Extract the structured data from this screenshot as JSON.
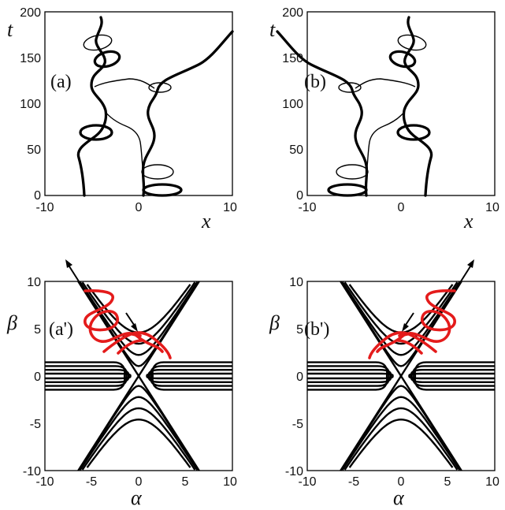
{
  "chart_data": [
    {
      "type": "line",
      "panel_label": "(a)",
      "xlabel": "x",
      "ylabel": "t",
      "xlim": [
        -10,
        10
      ],
      "ylim": [
        0,
        200
      ],
      "x_ticks": [
        -10,
        0,
        10
      ],
      "y_ticks": [
        0,
        50,
        100,
        150,
        200
      ],
      "grid": false,
      "series": [
        {
          "style": "thin",
          "x": [
            -5.7,
            -5.9,
            -6.4,
            -7.0,
            -7.5,
            -7.6,
            -7.3,
            -6.7,
            -6.2,
            -5.9
          ],
          "y": [
            0.0,
            30.0,
            55.0,
            80.0,
            110.0,
            130.0,
            150.0,
            172.0,
            190.0,
            200.0
          ]
        },
        {
          "style": "thick",
          "x": [
            0.4,
            0.6,
            0.9,
            1.2,
            1.0,
            0.6,
            0.3,
            0.1,
            0.4,
            0.8
          ],
          "y": [
            0.0,
            20.0,
            45.0,
            75.0,
            100.0,
            120.0,
            140.0,
            160.0,
            180.0,
            200.0
          ]
        },
        {
          "style": "thick",
          "x": [
            -1.5,
            -0.9,
            0.0,
            1.5,
            3.5,
            6.2,
            8.3,
            10.0
          ],
          "y": [
            103.0,
            108.0,
            113.0,
            117.0,
            125.0,
            142.0,
            160.0,
            178.0
          ]
        }
      ]
    },
    {
      "type": "line",
      "panel_label": "(b)",
      "xlabel": "x",
      "ylabel": "t",
      "xlim": [
        -10,
        10
      ],
      "ylim": [
        0,
        200
      ],
      "x_ticks": [
        -10,
        0,
        10
      ],
      "y_ticks": [
        0,
        50,
        100,
        150,
        200
      ],
      "grid": false,
      "series": [
        {
          "style": "thin",
          "x": [
            5.7,
            5.9,
            6.4,
            7.0,
            7.5,
            7.6,
            7.3,
            6.7,
            6.2,
            5.9
          ],
          "y": [
            0.0,
            30.0,
            55.0,
            80.0,
            110.0,
            130.0,
            150.0,
            172.0,
            190.0,
            200.0
          ]
        },
        {
          "style": "thick",
          "x": [
            -0.4,
            -0.6,
            -0.9,
            -1.2,
            -1.0,
            -0.6,
            -0.3,
            -0.1,
            -0.4,
            -0.8
          ],
          "y": [
            0.0,
            20.0,
            45.0,
            75.0,
            100.0,
            120.0,
            140.0,
            160.0,
            180.0,
            200.0
          ]
        },
        {
          "style": "thick",
          "x": [
            1.5,
            0.9,
            0.0,
            -1.5,
            -3.5,
            -6.2,
            -8.3,
            -10.0
          ],
          "y": [
            103.0,
            108.0,
            113.0,
            117.0,
            125.0,
            142.0,
            160.0,
            178.0
          ]
        }
      ]
    },
    {
      "type": "line",
      "panel_label": "(a')",
      "xlabel": "α",
      "ylabel": "β",
      "xlim": [
        -10,
        10
      ],
      "ylim": [
        -10,
        10
      ],
      "x_ticks": [
        -10,
        -5,
        0,
        5,
        10
      ],
      "y_ticks": [
        -10,
        -5,
        0,
        5,
        10
      ],
      "grid": false,
      "series": [
        {
          "style": "trajectory",
          "x": [
            -2.5,
            -1.8,
            -0.4,
            0.7,
            1.1,
            0.6,
            -0.4,
            -1.6,
            -2.5,
            -2.7,
            -2.1,
            -0.9,
            0.4,
            1.2,
            1.5,
            0.9
          ],
          "y": [
            -3.6,
            -2.5,
            -0.8,
            0.8,
            2.7,
            3.8,
            4.5,
            5.4,
            6.3,
            7.4,
            8.4,
            9.2,
            9.5,
            9.0,
            8.4,
            7.8
          ]
        }
      ]
    },
    {
      "type": "line",
      "panel_label": "(b')",
      "xlabel": "α",
      "ylabel": "β",
      "xlim": [
        -10,
        10
      ],
      "ylim": [
        -10,
        10
      ],
      "x_ticks": [
        -10,
        -5,
        0,
        5,
        10
      ],
      "y_ticks": [
        -10,
        -5,
        0,
        5,
        10
      ],
      "grid": false,
      "series": [
        {
          "style": "trajectory",
          "x": [
            2.5,
            1.8,
            0.4,
            -0.7,
            -1.1,
            -0.6,
            0.4,
            1.6,
            2.5,
            2.7,
            2.1,
            0.9,
            -0.4,
            -1.2,
            -1.5,
            -0.9
          ],
          "y": [
            -3.6,
            -2.5,
            -0.8,
            0.8,
            2.7,
            3.8,
            4.5,
            5.4,
            6.3,
            7.4,
            8.4,
            9.2,
            9.5,
            9.0,
            8.4,
            7.8
          ]
        }
      ]
    }
  ]
}
